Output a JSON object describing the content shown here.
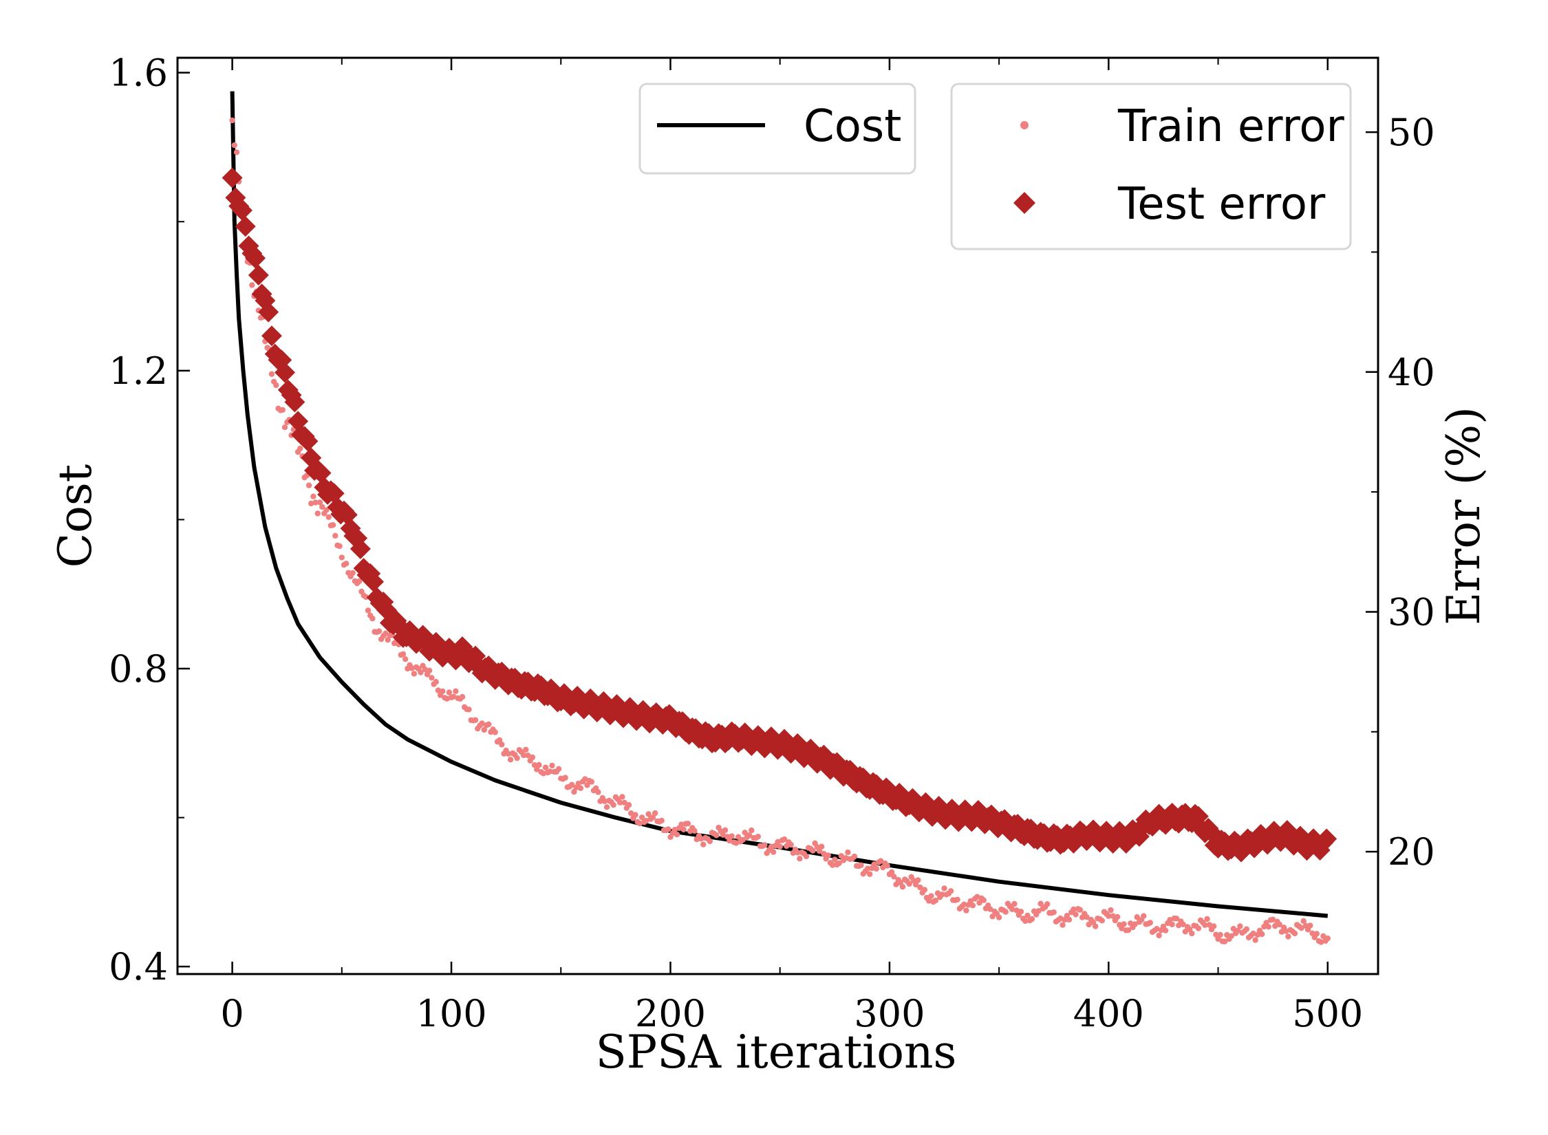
{
  "chart_data": {
    "type": "line",
    "xlabel": "SPSA iterations",
    "ylabel_left": "Cost",
    "ylabel_right": "Error (%)",
    "xlim": [
      -25,
      523
    ],
    "ylim_left": [
      0.39,
      1.62
    ],
    "ylim_right": [
      14.9,
      53.1
    ],
    "xticks": [
      0,
      100,
      200,
      300,
      400,
      500
    ],
    "xtick_labels": [
      "0",
      "100",
      "200",
      "300",
      "400",
      "500"
    ],
    "yticks_left": [
      0.4,
      0.8,
      1.2,
      1.6
    ],
    "ytick_labels_left": [
      "0.4",
      "0.8",
      "1.2",
      "1.6"
    ],
    "yticks_left_minor": [
      0.6,
      1.0,
      1.4
    ],
    "yticks_right": [
      20,
      30,
      40,
      50
    ],
    "ytick_labels_right": [
      "20",
      "30",
      "40",
      "50"
    ],
    "yticks_right_minor": [
      25,
      35,
      45
    ],
    "grid": false,
    "legend": [
      {
        "label": "Cost",
        "placement": "top-center"
      },
      {
        "label": "Train error",
        "placement": "top-right"
      },
      {
        "label": "Test error",
        "placement": "top-right"
      }
    ],
    "series": [
      {
        "name": "Cost",
        "axis": "left",
        "style": "line",
        "color": "#000000",
        "x": [
          0,
          1,
          2,
          3,
          5,
          7,
          10,
          15,
          20,
          25,
          30,
          40,
          50,
          60,
          70,
          80,
          100,
          120,
          150,
          175,
          200,
          250,
          300,
          350,
          400,
          450,
          500
        ],
        "y": [
          1.575,
          1.4,
          1.33,
          1.27,
          1.2,
          1.14,
          1.07,
          0.99,
          0.935,
          0.895,
          0.86,
          0.815,
          0.782,
          0.752,
          0.725,
          0.705,
          0.675,
          0.65,
          0.62,
          0.6,
          0.582,
          0.56,
          0.536,
          0.514,
          0.496,
          0.481,
          0.468
        ]
      },
      {
        "name": "Train error",
        "axis": "right",
        "style": "dots",
        "color": "#f08080",
        "x": [
          0,
          5,
          10,
          15,
          20,
          25,
          30,
          35,
          40,
          45,
          50,
          55,
          60,
          65,
          70,
          80,
          90,
          100,
          110,
          120,
          130,
          140,
          150,
          160,
          170,
          180,
          190,
          200,
          210,
          220,
          230,
          240,
          250,
          260,
          270,
          280,
          290,
          300,
          310,
          320,
          330,
          340,
          350,
          360,
          370,
          380,
          390,
          400,
          410,
          420,
          430,
          440,
          450,
          460,
          470,
          480,
          490,
          500
        ],
        "y": [
          50.0,
          46.5,
          43.5,
          41.0,
          39.5,
          38.0,
          36.5,
          35.5,
          34.5,
          33.5,
          32.5,
          31.5,
          30.5,
          29.5,
          29.0,
          28.0,
          27.2,
          26.5,
          25.7,
          24.7,
          24.0,
          23.7,
          23.0,
          22.8,
          22.3,
          21.8,
          21.3,
          21.0,
          20.8,
          20.6,
          20.7,
          20.4,
          20.2,
          20.1,
          19.9,
          19.6,
          19.4,
          19.2,
          18.6,
          18.2,
          18.0,
          17.8,
          17.6,
          17.4,
          17.5,
          17.3,
          17.3,
          17.2,
          17.0,
          16.9,
          16.9,
          17.0,
          16.6,
          16.5,
          16.8,
          16.9,
          16.7,
          16.5
        ]
      },
      {
        "name": "Test error",
        "axis": "right",
        "style": "diamond",
        "color": "#b22222",
        "x": [
          0,
          3,
          6,
          9,
          12,
          15,
          18,
          21,
          24,
          27,
          30,
          34,
          38,
          42,
          46,
          50,
          55,
          60,
          65,
          70,
          75,
          80,
          85,
          90,
          95,
          100,
          105,
          110,
          115,
          120,
          125,
          130,
          140,
          150,
          160,
          170,
          180,
          190,
          200,
          210,
          220,
          230,
          240,
          250,
          260,
          270,
          280,
          290,
          300,
          310,
          320,
          330,
          340,
          350,
          360,
          370,
          380,
          390,
          400,
          410,
          420,
          430,
          440,
          450,
          460,
          470,
          480,
          490,
          500
        ],
        "y": [
          48.0,
          47.0,
          46.0,
          45.0,
          44.0,
          43.0,
          41.5,
          40.5,
          40.0,
          39.0,
          38.0,
          37.0,
          36.0,
          35.3,
          34.8,
          34.2,
          33.5,
          32.0,
          31.0,
          30.0,
          29.4,
          29.0,
          28.9,
          28.6,
          28.4,
          28.2,
          28.3,
          28.0,
          27.6,
          27.4,
          27.2,
          27.0,
          26.8,
          26.4,
          26.2,
          26.0,
          25.8,
          25.6,
          25.5,
          25.0,
          24.7,
          24.8,
          24.6,
          24.5,
          24.2,
          23.8,
          23.3,
          22.8,
          22.4,
          22.0,
          21.7,
          21.5,
          21.5,
          21.2,
          20.9,
          20.6,
          20.5,
          20.7,
          20.6,
          20.6,
          21.3,
          21.4,
          21.4,
          20.3,
          20.2,
          20.5,
          20.7,
          20.3,
          20.3
        ]
      }
    ]
  }
}
